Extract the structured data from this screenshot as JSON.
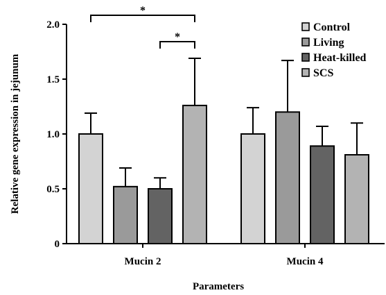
{
  "chart_data": {
    "type": "bar",
    "title": "",
    "xlabel": "Parameters",
    "ylabel": "Relative gene expression in jejunum",
    "ylim": [
      0,
      2.0
    ],
    "yticks": [
      "0",
      "0.5",
      "1.0",
      "1.5",
      "2.0"
    ],
    "categories": [
      "Mucin 2",
      "Mucin 4"
    ],
    "grid": false,
    "legend": "top-right",
    "series": [
      {
        "name": "Control",
        "color": "#d3d3d3",
        "values": [
          1.0,
          1.0
        ],
        "errors": [
          0.19,
          0.24
        ]
      },
      {
        "name": "Living",
        "color": "#9a9a9a",
        "values": [
          0.52,
          1.2
        ],
        "errors": [
          0.17,
          0.47
        ]
      },
      {
        "name": "Heat-killed",
        "color": "#636363",
        "values": [
          0.5,
          0.89
        ],
        "errors": [
          0.1,
          0.18
        ]
      },
      {
        "name": "SCS",
        "color": "#b3b3b3",
        "values": [
          1.26,
          0.81
        ],
        "errors": [
          0.43,
          0.29
        ]
      }
    ],
    "significance": [
      {
        "category": "Mucin 2",
        "from": "Control",
        "to": "SCS",
        "label": "*"
      },
      {
        "category": "Mucin 2",
        "from": "Heat-killed",
        "to": "SCS",
        "label": "*"
      }
    ]
  }
}
